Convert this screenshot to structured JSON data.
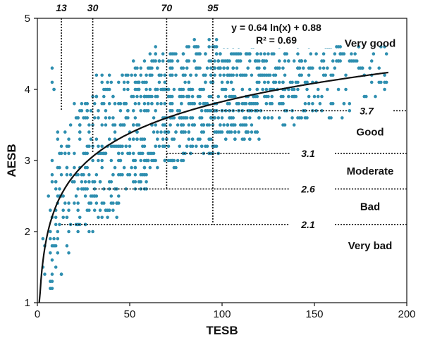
{
  "chart_data": {
    "type": "scatter",
    "xlabel": "TESB",
    "ylabel": "AESB",
    "xlim": [
      0,
      200
    ],
    "ylim": [
      1,
      5
    ],
    "xticks": [
      0,
      50,
      100,
      150,
      200
    ],
    "yticks": [
      1,
      2,
      3,
      4,
      5
    ],
    "grid": false,
    "marker_color": "#2f8fb0",
    "trendline": {
      "equation": "y = 0.64 ln(x) + 0.88",
      "r_squared": "R² = 0.69",
      "a": 0.64,
      "b": 0.88,
      "x_range": [
        1,
        190
      ]
    },
    "x_thresholds": [
      {
        "x": 13,
        "label": "13"
      },
      {
        "x": 30,
        "label": "30"
      },
      {
        "x": 70,
        "label": "70"
      },
      {
        "x": 95,
        "label": "95"
      }
    ],
    "y_thresholds": [
      {
        "y": 3.7,
        "label": "3.7"
      },
      {
        "y": 3.1,
        "label": "3.1"
      },
      {
        "y": 2.6,
        "label": "2.6"
      },
      {
        "y": 2.1,
        "label": "2.1"
      }
    ],
    "classes": [
      {
        "label": "Very good",
        "y": 4.65
      },
      {
        "label": "Good",
        "y": 3.4
      },
      {
        "label": "Moderate",
        "y": 2.85
      },
      {
        "label": "Bad",
        "y": 2.35
      },
      {
        "label": "Very bad",
        "y": 1.8
      }
    ],
    "scatter_bands": [
      {
        "x_range": [
          2,
          10
        ],
        "y_range": [
          1.0,
          2.0
        ],
        "n": 14
      },
      {
        "x_range": [
          5,
          12
        ],
        "y_range": [
          1.5,
          4.5
        ],
        "n": 22
      },
      {
        "x_range": [
          10,
          20
        ],
        "y_range": [
          1.4,
          3.5
        ],
        "n": 45
      },
      {
        "x_range": [
          20,
          30
        ],
        "y_range": [
          1.9,
          3.8
        ],
        "n": 70
      },
      {
        "x_range": [
          30,
          45
        ],
        "y_range": [
          2.2,
          4.2
        ],
        "n": 110
      },
      {
        "x_range": [
          45,
          60
        ],
        "y_range": [
          2.6,
          4.4
        ],
        "n": 130
      },
      {
        "x_range": [
          60,
          80
        ],
        "y_range": [
          2.9,
          4.6
        ],
        "n": 170
      },
      {
        "x_range": [
          80,
          100
        ],
        "y_range": [
          3.1,
          4.7
        ],
        "n": 180
      },
      {
        "x_range": [
          100,
          120
        ],
        "y_range": [
          3.3,
          4.6
        ],
        "n": 160
      },
      {
        "x_range": [
          120,
          145
        ],
        "y_range": [
          3.5,
          4.6
        ],
        "n": 120
      },
      {
        "x_range": [
          145,
          170
        ],
        "y_range": [
          3.6,
          4.6
        ],
        "n": 70
      },
      {
        "x_range": [
          170,
          190
        ],
        "y_range": [
          3.9,
          4.6
        ],
        "n": 30
      }
    ]
  }
}
